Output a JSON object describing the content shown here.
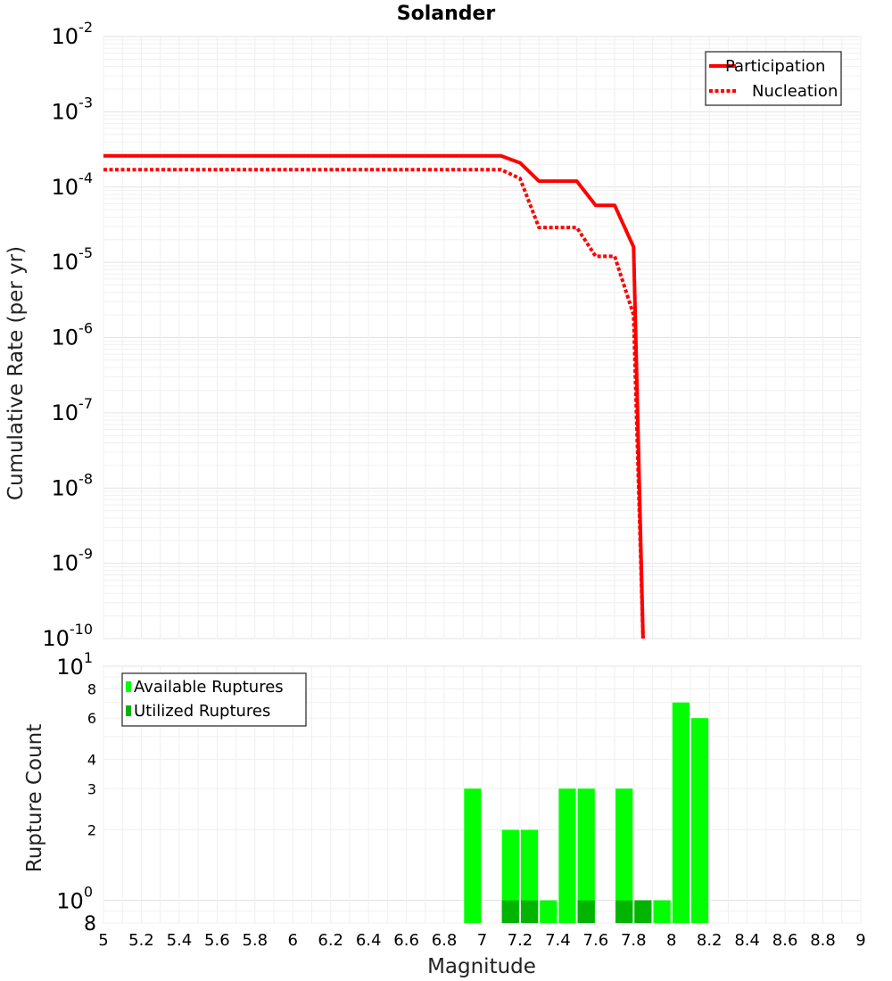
{
  "chart_data": [
    {
      "type": "line",
      "title": "Solander",
      "xlabel": "",
      "ylabel": "Cumulative Rate (per yr)",
      "y_scale": "log",
      "xlim": [
        5,
        9
      ],
      "ylim": [
        1e-10,
        0.01
      ],
      "y_ticks": [
        {
          "base": "10",
          "exp": "-10",
          "value": 1e-10
        },
        {
          "base": "10",
          "exp": "-9",
          "value": 1e-09
        },
        {
          "base": "10",
          "exp": "-8",
          "value": 1e-08
        },
        {
          "base": "10",
          "exp": "-7",
          "value": 1e-07
        },
        {
          "base": "10",
          "exp": "-6",
          "value": 1e-06
        },
        {
          "base": "10",
          "exp": "-5",
          "value": 1e-05
        },
        {
          "base": "10",
          "exp": "-4",
          "value": 0.0001
        },
        {
          "base": "10",
          "exp": "-3",
          "value": 0.001
        },
        {
          "base": "10",
          "exp": "-2",
          "value": 0.01
        }
      ],
      "grid": true,
      "legend_position": "top-right",
      "series": [
        {
          "name": "Participation",
          "color": "#ff0000",
          "style": "solid",
          "x": [
            5.0,
            7.1,
            7.2,
            7.3,
            7.5,
            7.6,
            7.7,
            7.8,
            7.85
          ],
          "y": [
            0.00026,
            0.00026,
            0.00021,
            0.00012,
            0.00012,
            5.7e-05,
            5.7e-05,
            1.6e-05,
            1e-10
          ]
        },
        {
          "name": "Nucleation",
          "color": "#ff0000",
          "style": "dotted",
          "x": [
            5.0,
            7.1,
            7.2,
            7.3,
            7.5,
            7.6,
            7.7,
            7.8,
            7.85
          ],
          "y": [
            0.00017,
            0.00017,
            0.00013,
            2.9e-05,
            2.9e-05,
            1.2e-05,
            1.2e-05,
            2e-06,
            1e-10
          ]
        }
      ]
    },
    {
      "type": "bar",
      "xlabel": "Magnitude",
      "ylabel": "Rupture Count",
      "y_scale": "log",
      "xlim": [
        5,
        9
      ],
      "ylim": [
        0.8,
        10
      ],
      "x_ticks": [
        "5",
        "5.2",
        "5.4",
        "5.6",
        "5.8",
        "6",
        "6.2",
        "6.4",
        "6.6",
        "6.8",
        "7",
        "7.2",
        "7.4",
        "7.6",
        "7.8",
        "8",
        "8.2",
        "8.4",
        "8.6",
        "8.8",
        "9"
      ],
      "y_minor_ticks": [
        {
          "label": "2",
          "value": 2
        },
        {
          "label": "3",
          "value": 3
        },
        {
          "label": "4",
          "value": 4
        },
        {
          "label": "6",
          "value": 6
        },
        {
          "label": "8",
          "value": 8
        }
      ],
      "y_decade_ticks": [
        {
          "base": "10",
          "exp": "0",
          "value": 1
        },
        {
          "base": "10",
          "exp": "1",
          "value": 10
        }
      ],
      "y_bottom_label": "8",
      "grid": true,
      "legend_position": "top-left",
      "series": [
        {
          "name": "Available Ruptures",
          "color": "#00ff00",
          "x": [
            6.95,
            7.15,
            7.25,
            7.35,
            7.45,
            7.55,
            7.75,
            7.85,
            7.95,
            8.05,
            8.15
          ],
          "values": [
            3,
            2,
            2,
            1,
            3,
            3,
            3,
            1,
            1,
            7,
            6
          ]
        },
        {
          "name": "Utilized Ruptures",
          "color": "#00b400",
          "x": [
            7.15,
            7.25,
            7.55,
            7.75,
            7.85
          ],
          "values": [
            1,
            1,
            1,
            1,
            1
          ]
        }
      ]
    }
  ]
}
